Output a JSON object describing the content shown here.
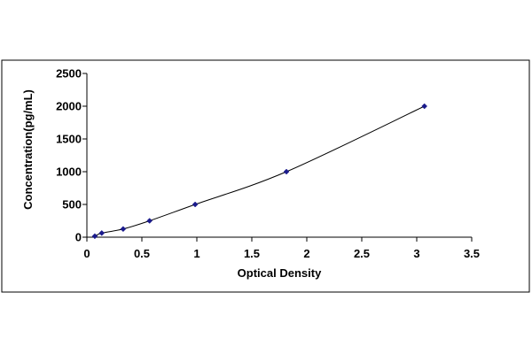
{
  "chart_data": {
    "type": "scatter",
    "title": "",
    "xlabel": "Optical Density",
    "ylabel": "Concentration(pg/mL)",
    "xlim": [
      0,
      3.5
    ],
    "ylim": [
      0,
      2500
    ],
    "x_ticks": [
      "0",
      "0.5",
      "1",
      "1.5",
      "2",
      "2.5",
      "3",
      "3.5"
    ],
    "y_ticks": [
      "0",
      "500",
      "1000",
      "1500",
      "2000",
      "2500"
    ],
    "grid": false,
    "legend": "none",
    "line_style": "smooth",
    "marker": "diamond",
    "colors": {
      "marker": "#1a1a8c",
      "line": "#000000",
      "axis": "#000000",
      "frame": "#000000"
    },
    "series": [
      {
        "x": [
          0.072,
          0.135,
          0.33,
          0.57,
          0.985,
          1.815,
          3.07
        ],
        "y": [
          15.6,
          62.5,
          125,
          250,
          500,
          1000,
          2000
        ]
      }
    ]
  }
}
